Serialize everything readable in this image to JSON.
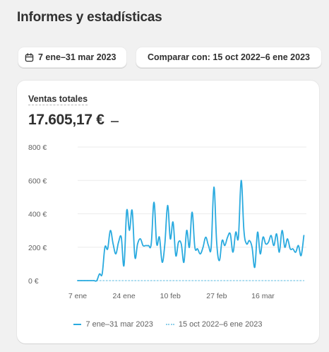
{
  "header": {
    "title": "Informes y estadísticas"
  },
  "filters": {
    "date_range_label": "7 ene–31 mar 2023",
    "compare_label": "Comparar con: 15 oct 2022–6 ene 2023",
    "calendar_icon": "calendar-icon"
  },
  "metric": {
    "label": "Ventas totales",
    "value": "17.605,17 €"
  },
  "legend": {
    "current": "7 ene–31 mar 2023",
    "previous": "15 oct 2022–6 ene 2023"
  },
  "colors": {
    "current_series": "#29aadf",
    "previous_series": "#8fd0ea",
    "gridline": "#ebebeb"
  },
  "chart_data": {
    "type": "line",
    "xlabel": "",
    "ylabel": "",
    "ylim": [
      0,
      800
    ],
    "grid": true,
    "legend_position": "bottom",
    "y_ticks": [
      {
        "value": 800,
        "label": "800 €"
      },
      {
        "value": 600,
        "label": "600 €"
      },
      {
        "value": 400,
        "label": "400 €"
      },
      {
        "value": 200,
        "label": "200 €"
      },
      {
        "value": 0,
        "label": "0 €"
      }
    ],
    "x_ticks": [
      {
        "value": 0,
        "label": "7 ene"
      },
      {
        "value": 17,
        "label": "24 ene"
      },
      {
        "value": 34,
        "label": "10 feb"
      },
      {
        "value": 51,
        "label": "27 feb"
      },
      {
        "value": 68,
        "label": "16 mar"
      }
    ],
    "series": [
      {
        "name": "7 ene–31 mar 2023",
        "style": "solid",
        "values": [
          0,
          0,
          0,
          0,
          0,
          0,
          0,
          0,
          40,
          40,
          200,
          190,
          300,
          220,
          160,
          230,
          260,
          90,
          420,
          300,
          420,
          140,
          220,
          250,
          210,
          210,
          210,
          220,
          470,
          220,
          260,
          110,
          220,
          450,
          250,
          350,
          150,
          230,
          220,
          110,
          300,
          200,
          410,
          200,
          190,
          160,
          200,
          260,
          210,
          200,
          560,
          230,
          120,
          240,
          210,
          260,
          280,
          170,
          290,
          260,
          600,
          300,
          220,
          240,
          200,
          80,
          290,
          160,
          260,
          220,
          230,
          270,
          210,
          280,
          170,
          300,
          200,
          250,
          190,
          190,
          170,
          210,
          150,
          270
        ]
      },
      {
        "name": "15 oct 2022–6 ene 2023",
        "style": "dotted",
        "values": [
          0,
          0,
          0,
          0,
          0,
          0,
          0,
          0,
          0,
          0,
          0,
          0,
          0,
          0,
          0,
          0,
          0,
          0,
          0,
          0,
          0,
          0,
          0,
          0,
          0,
          0,
          0,
          0,
          0,
          0,
          0,
          0,
          0,
          0,
          0,
          0,
          0,
          0,
          0,
          0,
          0,
          0,
          0,
          0,
          0,
          0,
          0,
          0,
          0,
          0,
          0,
          0,
          0,
          0,
          0,
          0,
          0,
          0,
          0,
          0,
          0,
          0,
          0,
          0,
          0,
          0,
          0,
          0,
          0,
          0,
          0,
          0,
          0,
          0,
          0,
          0,
          0,
          0,
          0,
          0,
          0,
          0,
          0,
          0
        ]
      }
    ]
  }
}
